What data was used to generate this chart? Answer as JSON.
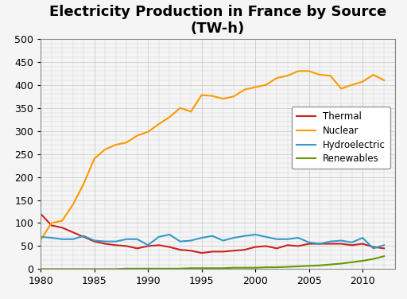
{
  "title_line1": "Electricity Production in France by Source",
  "title_line2": "(TW-h)",
  "years": [
    1980,
    1981,
    1982,
    1983,
    1984,
    1985,
    1986,
    1987,
    1988,
    1989,
    1990,
    1991,
    1992,
    1993,
    1994,
    1995,
    1996,
    1997,
    1998,
    1999,
    2000,
    2001,
    2002,
    2003,
    2004,
    2005,
    2006,
    2007,
    2008,
    2009,
    2010,
    2011,
    2012
  ],
  "thermal": [
    120,
    95,
    90,
    80,
    70,
    60,
    55,
    52,
    50,
    45,
    50,
    52,
    48,
    42,
    40,
    35,
    38,
    38,
    40,
    42,
    48,
    50,
    45,
    52,
    50,
    55,
    55,
    55,
    55,
    52,
    55,
    48,
    45
  ],
  "nuclear": [
    63,
    100,
    105,
    140,
    185,
    240,
    260,
    270,
    275,
    290,
    298,
    315,
    330,
    350,
    342,
    378,
    376,
    370,
    375,
    390,
    395,
    400,
    415,
    420,
    430,
    430,
    422,
    420,
    392,
    400,
    407,
    422,
    410
  ],
  "hydroelectric": [
    70,
    68,
    65,
    65,
    72,
    62,
    60,
    60,
    65,
    65,
    52,
    70,
    75,
    60,
    62,
    68,
    72,
    62,
    68,
    72,
    75,
    70,
    65,
    65,
    68,
    58,
    55,
    60,
    62,
    58,
    68,
    45,
    52
  ],
  "renewables": [
    0,
    0,
    0,
    0,
    0,
    0,
    0,
    0,
    1,
    1,
    1,
    1,
    1,
    1,
    2,
    2,
    2,
    2,
    3,
    3,
    3,
    4,
    4,
    5,
    6,
    7,
    8,
    10,
    12,
    15,
    18,
    22,
    28
  ],
  "thermal_color": "#cc2222",
  "nuclear_color": "#ff9900",
  "hydro_color": "#3399cc",
  "renewables_color": "#669900",
  "ylim": [
    0,
    500
  ],
  "yticks": [
    0,
    50,
    100,
    150,
    200,
    250,
    300,
    350,
    400,
    450,
    500
  ],
  "xticks": [
    1980,
    1985,
    1990,
    1995,
    2000,
    2005,
    2010
  ],
  "xlim": [
    1980,
    2013
  ],
  "legend_labels": [
    "Thermal",
    "Nuclear",
    "Hydroelectric",
    "Renewables"
  ],
  "background_color": "#f5f5f5",
  "grid_color": "#cccccc",
  "title_fontsize": 13,
  "tick_fontsize": 9,
  "line_width": 1.5
}
